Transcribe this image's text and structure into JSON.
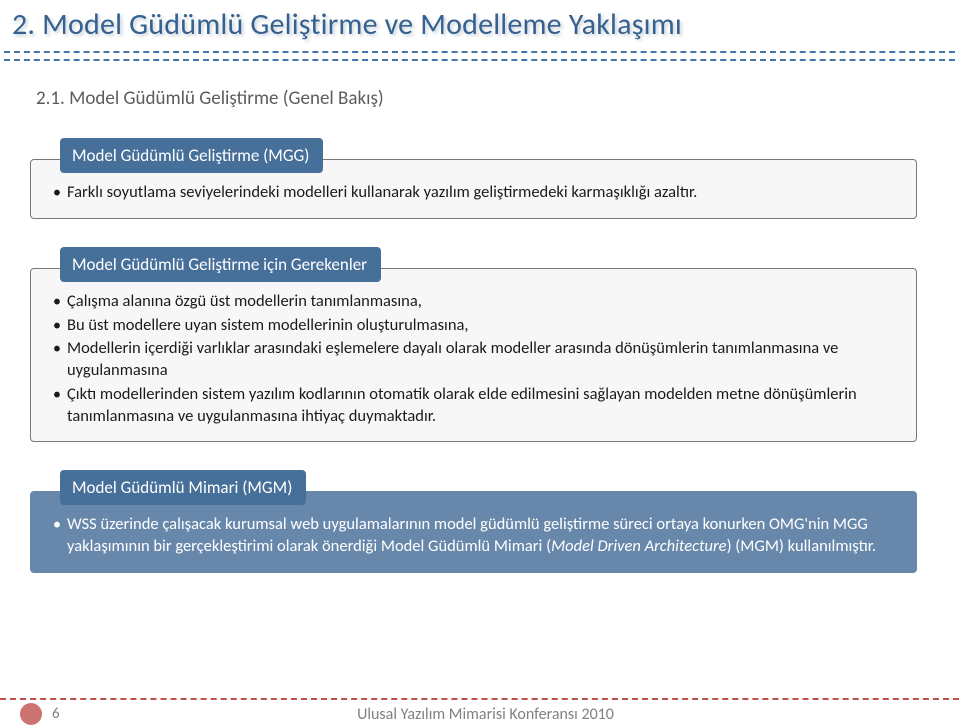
{
  "title": "2. Model Güdümlü Geliştirme ve Modelleme Yaklaşımı",
  "subsection": "2.1. Model Güdümlü Geliştirme (Genel Bakış)",
  "blocks": {
    "mgg": {
      "header": "Model Güdümlü Geliştirme (MGG)",
      "items": [
        "Farklı soyutlama seviyelerindeki modelleri kullanarak yazılım geliştirmedeki karmaşıklığı azaltır."
      ]
    },
    "gereken": {
      "header": "Model Güdümlü Geliştirme için Gerekenler",
      "items": [
        "Çalışma alanına özgü üst modellerin tanımlanmasına,",
        "Bu üst modellere uyan sistem modellerinin oluşturulmasına,",
        "Modellerin içerdiği varlıklar arasındaki eşlemelere dayalı olarak modeller arasında dönüşümlerin tanımlanmasına ve uygulanmasına",
        "Çıktı modellerinden sistem yazılım kodlarının otomatik olarak elde edilmesini sağlayan modelden metne dönüşümlerin tanımlanmasına ve uygulanmasına ihtiyaç duymaktadır."
      ]
    },
    "mgm": {
      "header": "Model Güdümlü Mimari (MGM)",
      "body_prefix": "WSS üzerinde çalışacak kurumsal web uygulamalarının model güdümlü geliştirme süreci ortaya konurken OMG'nin MGG yaklaşımının bir gerçekleştirimi olarak önerdiği Model Güdümlü Mimari (",
      "body_italic": "Model Driven Architecture",
      "body_suffix": ") (MGM) kullanılmıştır."
    }
  },
  "footer": {
    "page": "6",
    "conference": "Ulusal Yazılım Mimarisi Konferansı 2010"
  },
  "colors": {
    "title_color": "#356190",
    "dash_color": "#4478a8",
    "header_bg": "#466f9a",
    "body_bg": "#f7f7f7",
    "body_border": "#7a7872",
    "mgm_bg": "#6788ab",
    "footer_dash": "#c0504d",
    "footer_text": "#808080"
  }
}
